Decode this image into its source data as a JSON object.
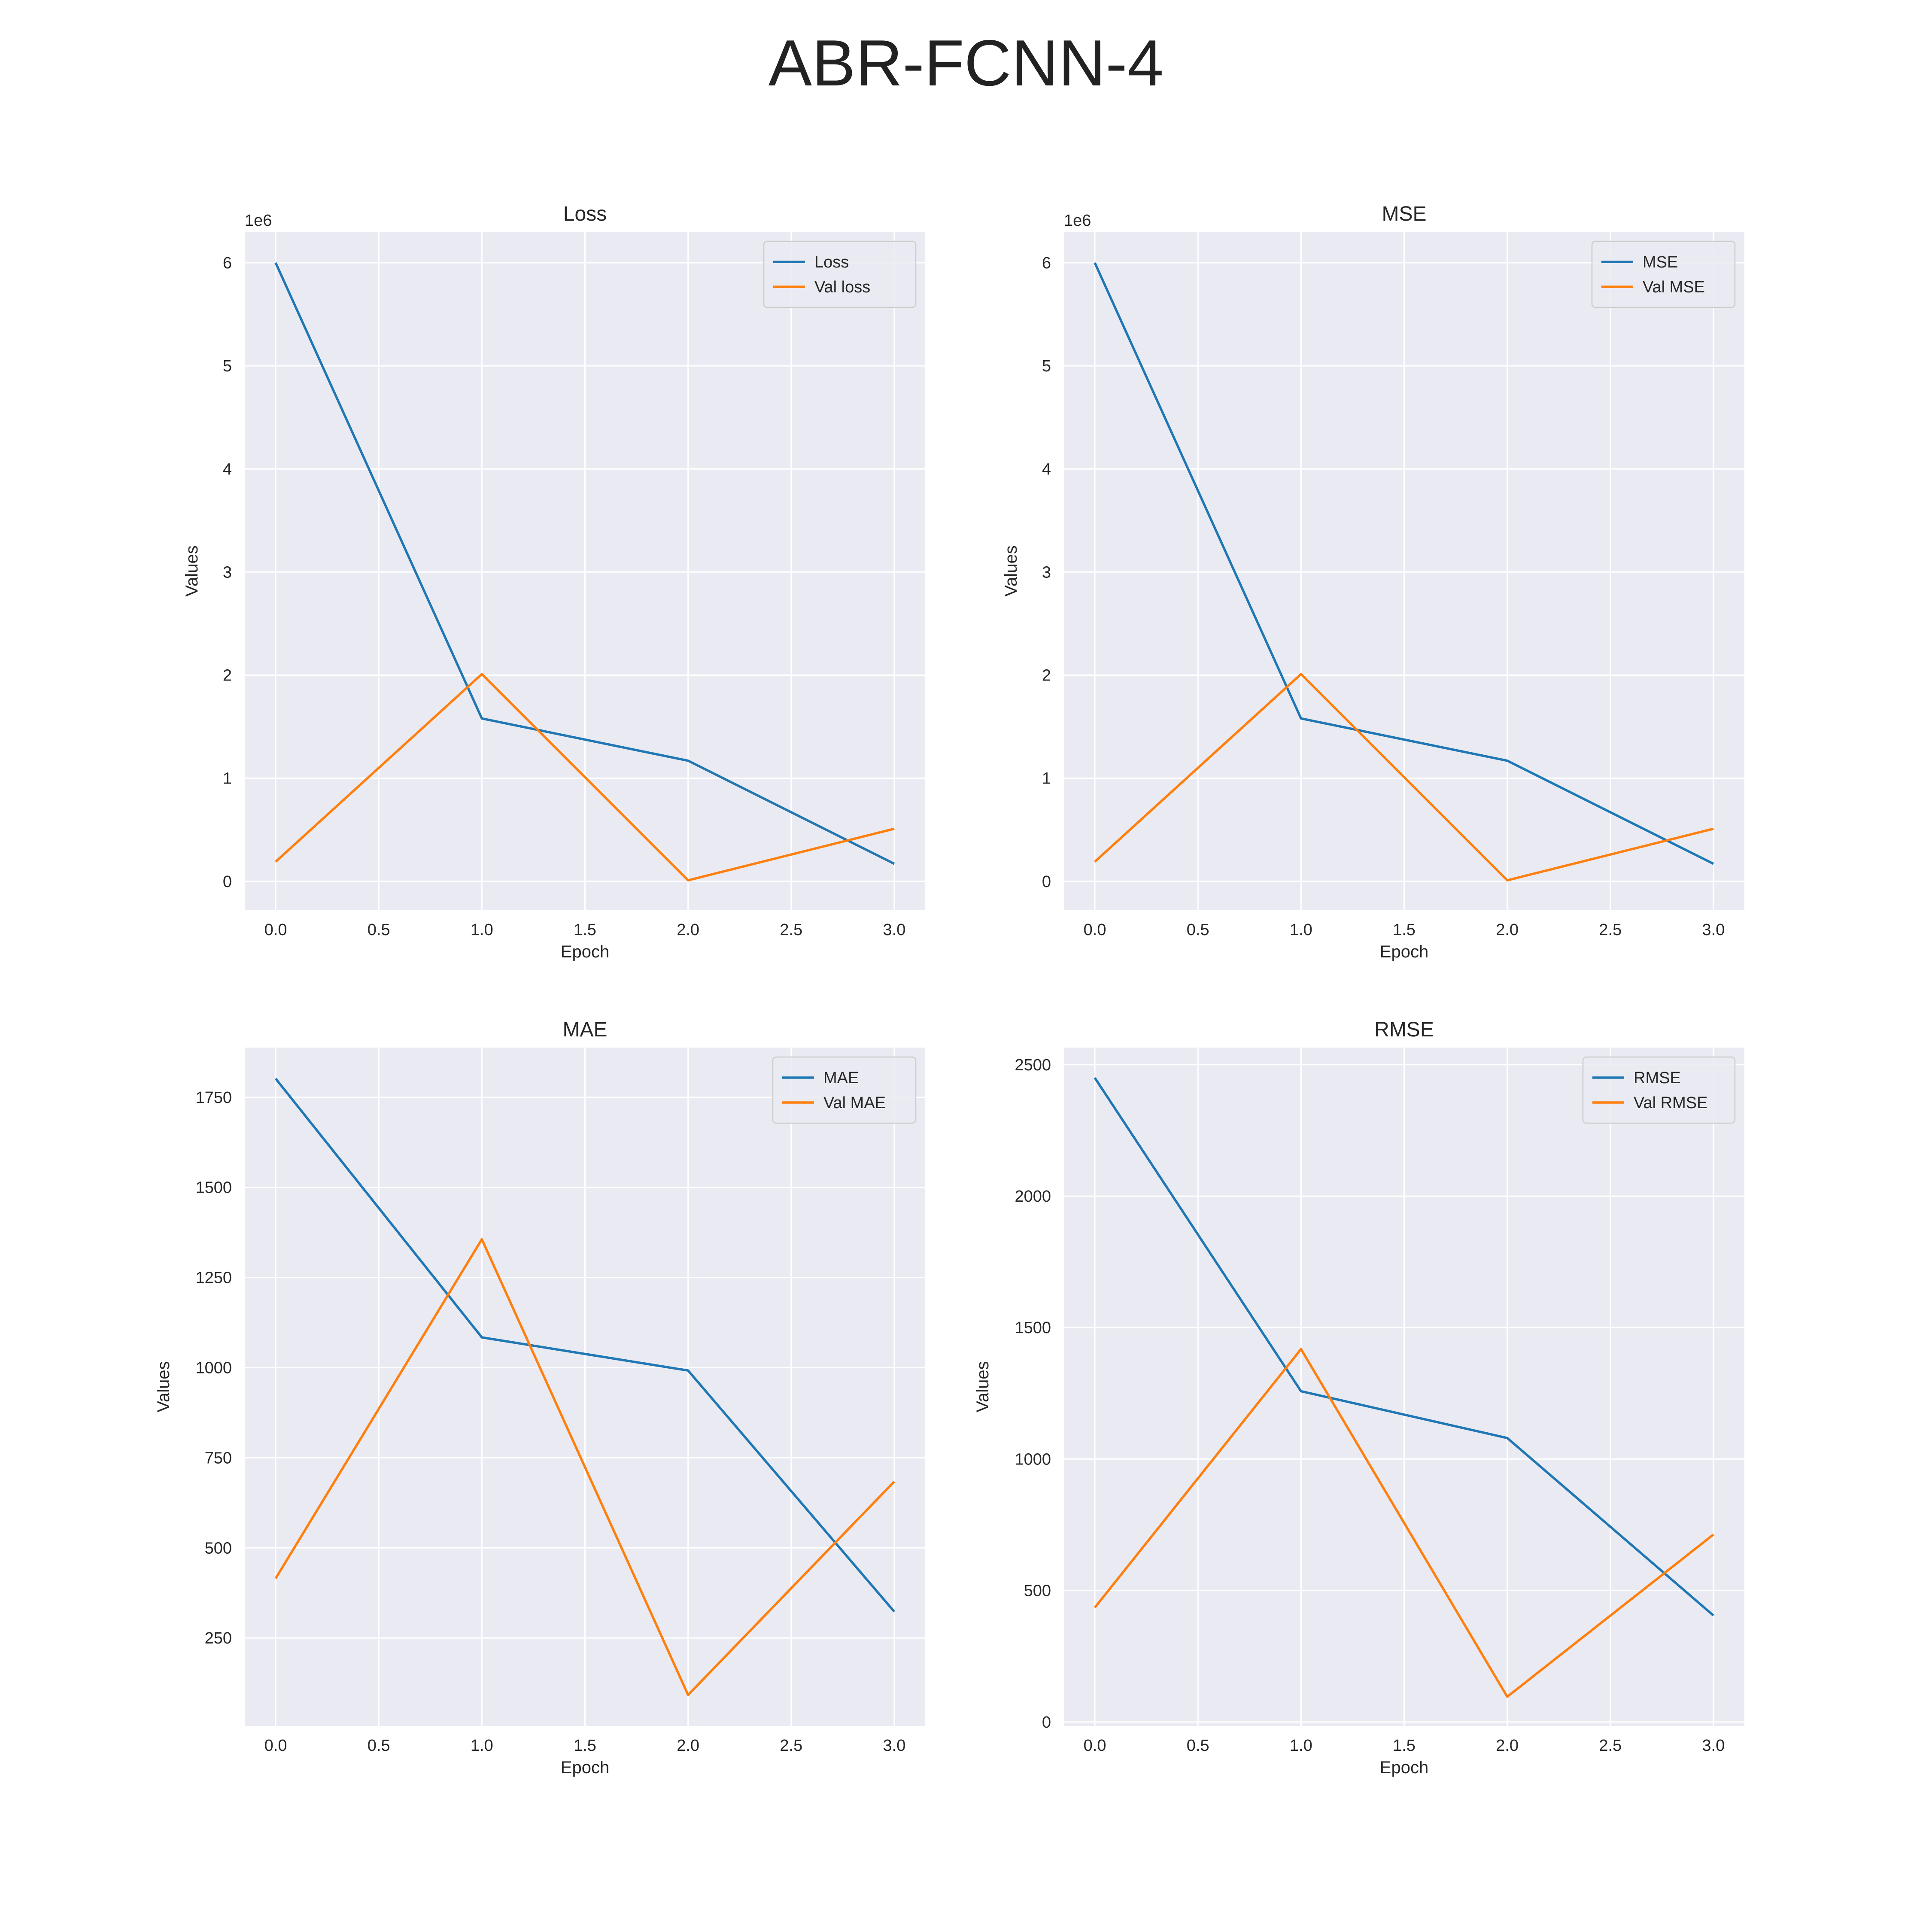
{
  "figure": {
    "title": "ABR-FCNN-4"
  },
  "colors": {
    "series_1": "#1f77b4",
    "series_2": "#ff7f0e",
    "plot_bg": "#eaeaf2",
    "grid": "#ffffff"
  },
  "chart_data": [
    {
      "type": "line",
      "title": "Loss",
      "xlabel": "Epoch",
      "ylabel": "Values",
      "offset_label": "1e6",
      "x": [
        0,
        1,
        2,
        3
      ],
      "xlim": [
        -0.15,
        3.15
      ],
      "ylim": [
        -0.28,
        6.3
      ],
      "xticks": [
        0,
        0.5,
        1,
        1.5,
        2,
        2.5,
        3
      ],
      "xtick_labels": [
        "0.0",
        "0.5",
        "1.0",
        "1.5",
        "2.0",
        "2.5",
        "3.0"
      ],
      "yticks": [
        0,
        1,
        2,
        3,
        4,
        5,
        6
      ],
      "ytick_labels": [
        "0",
        "1",
        "2",
        "3",
        "4",
        "5",
        "6"
      ],
      "grid": true,
      "legend_position": "upper right",
      "series": [
        {
          "name": "Loss",
          "values": [
            6.0,
            1.58,
            1.17,
            0.17
          ]
        },
        {
          "name": "Val loss",
          "values": [
            0.19,
            2.01,
            0.01,
            0.51
          ]
        }
      ]
    },
    {
      "type": "line",
      "title": "MSE",
      "xlabel": "Epoch",
      "ylabel": "Values",
      "offset_label": "1e6",
      "x": [
        0,
        1,
        2,
        3
      ],
      "xlim": [
        -0.15,
        3.15
      ],
      "ylim": [
        -0.28,
        6.3
      ],
      "xticks": [
        0,
        0.5,
        1,
        1.5,
        2,
        2.5,
        3
      ],
      "xtick_labels": [
        "0.0",
        "0.5",
        "1.0",
        "1.5",
        "2.0",
        "2.5",
        "3.0"
      ],
      "yticks": [
        0,
        1,
        2,
        3,
        4,
        5,
        6
      ],
      "ytick_labels": [
        "0",
        "1",
        "2",
        "3",
        "4",
        "5",
        "6"
      ],
      "grid": true,
      "legend_position": "upper right",
      "series": [
        {
          "name": "MSE",
          "values": [
            6.0,
            1.58,
            1.17,
            0.17
          ]
        },
        {
          "name": "Val MSE",
          "values": [
            0.19,
            2.01,
            0.01,
            0.51
          ]
        }
      ]
    },
    {
      "type": "line",
      "title": "MAE",
      "xlabel": "Epoch",
      "ylabel": "Values",
      "offset_label": "",
      "x": [
        0,
        1,
        2,
        3
      ],
      "xlim": [
        -0.15,
        3.15
      ],
      "ylim": [
        6,
        1888
      ],
      "xticks": [
        0,
        0.5,
        1,
        1.5,
        2,
        2.5,
        3
      ],
      "xtick_labels": [
        "0.0",
        "0.5",
        "1.0",
        "1.5",
        "2.0",
        "2.5",
        "3.0"
      ],
      "yticks": [
        250,
        500,
        750,
        1000,
        1250,
        1500,
        1750
      ],
      "ytick_labels": [
        "250",
        "500",
        "750",
        "1000",
        "1250",
        "1500",
        "1750"
      ],
      "grid": true,
      "legend_position": "upper right",
      "series": [
        {
          "name": "MAE",
          "values": [
            1802,
            1084,
            992,
            323
          ]
        },
        {
          "name": "Val MAE",
          "values": [
            415,
            1356,
            92,
            684
          ]
        }
      ]
    },
    {
      "type": "line",
      "title": "RMSE",
      "xlabel": "Epoch",
      "ylabel": "Values",
      "offset_label": "",
      "x": [
        0,
        1,
        2,
        3
      ],
      "xlim": [
        -0.15,
        3.15
      ],
      "ylim": [
        -15,
        2565
      ],
      "xticks": [
        0,
        0.5,
        1,
        1.5,
        2,
        2.5,
        3
      ],
      "xtick_labels": [
        "0.0",
        "0.5",
        "1.0",
        "1.5",
        "2.0",
        "2.5",
        "3.0"
      ],
      "yticks": [
        0,
        500,
        1000,
        1500,
        2000,
        2500
      ],
      "ytick_labels": [
        "0",
        "500",
        "1000",
        "1500",
        "2000",
        "2500"
      ],
      "grid": true,
      "legend_position": "upper right",
      "series": [
        {
          "name": "RMSE",
          "values": [
            2450,
            1258,
            1080,
            405
          ]
        },
        {
          "name": "Val RMSE",
          "values": [
            435,
            1418,
            96,
            713
          ]
        }
      ]
    }
  ]
}
